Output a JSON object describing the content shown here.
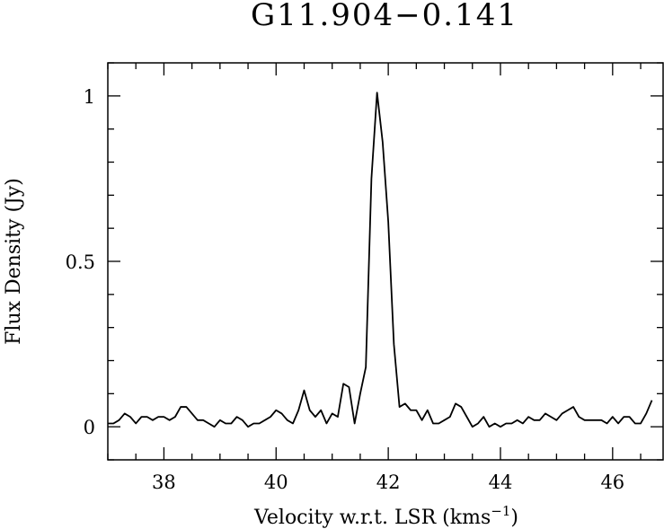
{
  "chart_data": {
    "type": "line",
    "title": "G11.904−0.141",
    "xlabel_prefix": "Velocity w.r.t. LSR (kms",
    "xlabel_exponent": "−1",
    "xlabel_suffix": ")",
    "ylabel": "Flux Density (Jy)",
    "xlim": [
      37.0,
      46.9
    ],
    "ylim": [
      -0.1,
      1.1
    ],
    "x_ticks": [
      38,
      40,
      42,
      44,
      46
    ],
    "x_tick_labels": [
      "38",
      "40",
      "42",
      "44",
      "46"
    ],
    "y_ticks": [
      0,
      0.5,
      1
    ],
    "y_tick_labels": [
      "0",
      "0.5",
      "1"
    ],
    "x_minor_step": 0.5,
    "y_minor_step": 0.1,
    "grid": false,
    "line_color": "#000000",
    "series": [
      {
        "x": [
          37.0,
          37.1,
          37.2,
          37.3,
          37.4,
          37.5,
          37.6,
          37.7,
          37.8,
          37.9,
          38.0,
          38.1,
          38.2,
          38.3,
          38.4,
          38.5,
          38.6,
          38.7,
          38.8,
          38.9,
          39.0,
          39.1,
          39.2,
          39.3,
          39.4,
          39.5,
          39.6,
          39.7,
          39.8,
          39.9,
          40.0,
          40.1,
          40.2,
          40.3,
          40.4,
          40.5,
          40.6,
          40.7,
          40.8,
          40.9,
          41.0,
          41.1,
          41.2,
          41.3,
          41.4,
          41.5,
          41.6,
          41.7,
          41.8,
          41.9,
          42.0,
          42.1,
          42.2,
          42.3,
          42.4,
          42.5,
          42.6,
          42.7,
          42.8,
          42.9,
          43.0,
          43.1,
          43.2,
          43.3,
          43.4,
          43.5,
          43.6,
          43.7,
          43.8,
          43.9,
          44.0,
          44.1,
          44.2,
          44.3,
          44.4,
          44.5,
          44.6,
          44.7,
          44.8,
          44.9,
          45.0,
          45.1,
          45.2,
          45.3,
          45.4,
          45.5,
          45.6,
          45.7,
          45.8,
          45.9,
          46.0,
          46.1,
          46.2,
          46.3,
          46.4,
          46.5,
          46.6,
          46.7
        ],
        "y": [
          0.01,
          0.01,
          0.02,
          0.04,
          0.03,
          0.01,
          0.03,
          0.03,
          0.02,
          0.03,
          0.03,
          0.02,
          0.03,
          0.06,
          0.06,
          0.04,
          0.02,
          0.02,
          0.01,
          0.0,
          0.02,
          0.01,
          0.01,
          0.03,
          0.02,
          0.0,
          0.01,
          0.01,
          0.02,
          0.03,
          0.05,
          0.04,
          0.02,
          0.01,
          0.05,
          0.11,
          0.05,
          0.03,
          0.05,
          0.01,
          0.04,
          0.03,
          0.13,
          0.12,
          0.01,
          0.1,
          0.18,
          0.75,
          1.01,
          0.86,
          0.62,
          0.25,
          0.06,
          0.07,
          0.05,
          0.05,
          0.02,
          0.05,
          0.01,
          0.01,
          0.02,
          0.03,
          0.07,
          0.06,
          0.03,
          0.0,
          0.01,
          0.03,
          0.0,
          0.01,
          0.0,
          0.01,
          0.01,
          0.02,
          0.01,
          0.03,
          0.02,
          0.02,
          0.04,
          0.03,
          0.02,
          0.04,
          0.05,
          0.06,
          0.03,
          0.02,
          0.02,
          0.02,
          0.02,
          0.01,
          0.03,
          0.01,
          0.03,
          0.03,
          0.01,
          0.01,
          0.04,
          0.08
        ]
      }
    ]
  }
}
